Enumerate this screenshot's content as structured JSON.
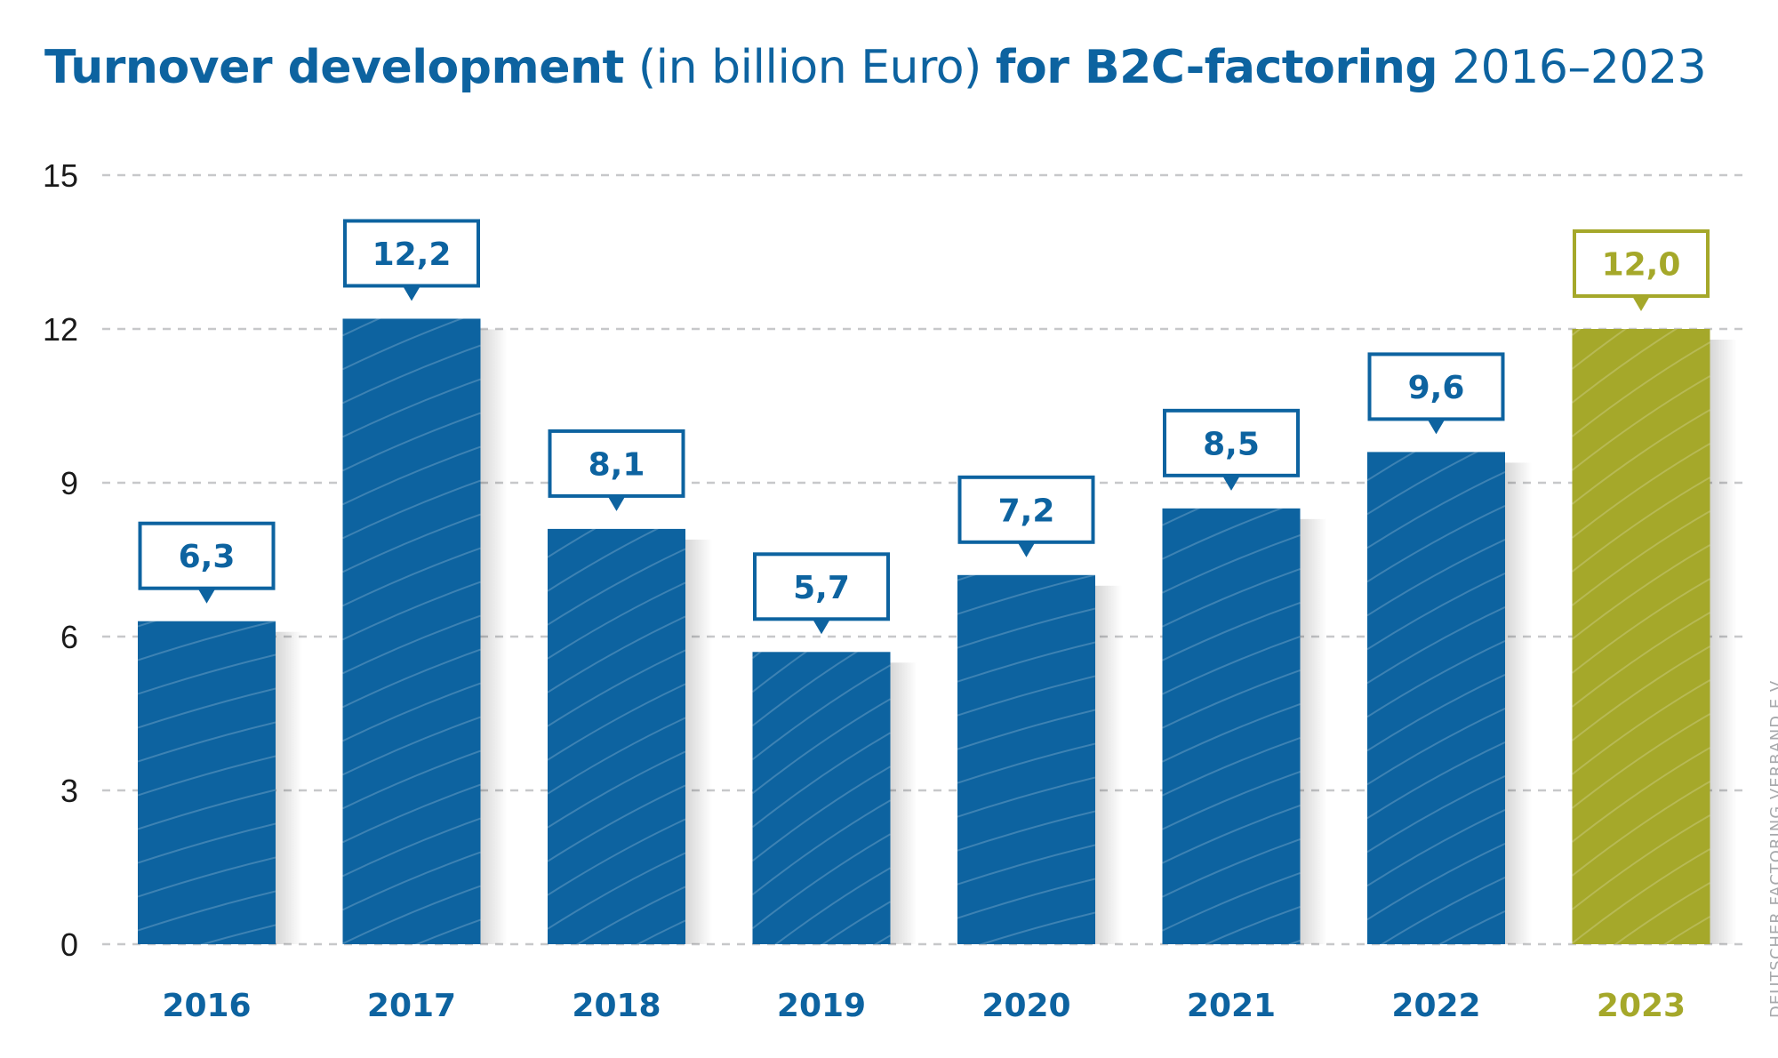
{
  "title": {
    "part1": "Turnover development",
    "part2": " (in billion Euro) ",
    "part3": "for B2C-factoring",
    "part4": " 2016–2023"
  },
  "source": "DEUTSCHER FACTORING VERBAND E.V.",
  "colors": {
    "primary": "#0d63a0",
    "highlight": "#a5a82a",
    "grid": "#c7c8ca",
    "text": "#1a1a1a"
  },
  "chart_data": {
    "type": "bar",
    "title": "Turnover development (in billion Euro) for B2C-factoring 2016–2023",
    "xlabel": "",
    "ylabel": "",
    "categories": [
      "2016",
      "2017",
      "2018",
      "2019",
      "2020",
      "2021",
      "2022",
      "2023"
    ],
    "values": [
      6.3,
      12.2,
      8.1,
      5.7,
      7.2,
      8.5,
      9.6,
      12.0
    ],
    "value_labels": [
      "6,3",
      "12,2",
      "8,1",
      "5,7",
      "7,2",
      "8,5",
      "9,6",
      "12,0"
    ],
    "highlighted_category": "2023",
    "ylim": [
      0,
      15
    ],
    "yticks": [
      0,
      3,
      6,
      9,
      12,
      15
    ],
    "grid": true,
    "legend": "none"
  }
}
